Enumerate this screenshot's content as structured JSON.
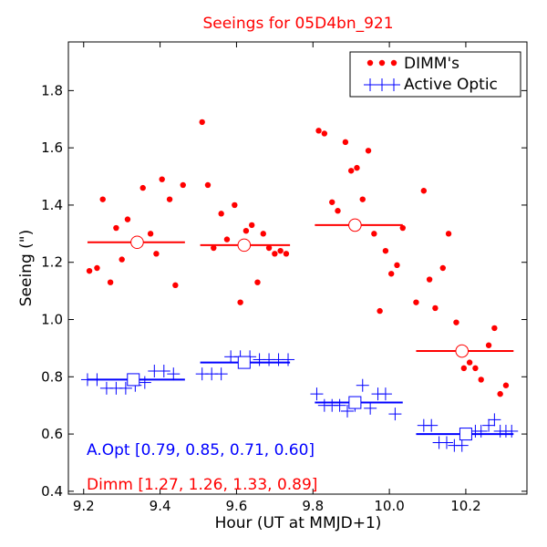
{
  "chart_data": {
    "type": "scatter",
    "title": "Seeings for 05D4bn_921",
    "xlabel": "Hour (UT at MMJD+1)",
    "ylabel": "Seeing (\")",
    "xlim": [
      9.16,
      10.36
    ],
    "ylim": [
      0.39,
      1.97
    ],
    "x_ticks": [
      9.2,
      9.4,
      9.6,
      9.8,
      10.0,
      10.2
    ],
    "x_tick_labels": [
      "9.2",
      "9.4",
      "9.6",
      "9.8",
      "10.0",
      "10.2"
    ],
    "y_ticks": [
      0.4,
      0.6,
      0.8,
      1.0,
      1.2,
      1.4,
      1.6,
      1.8
    ],
    "y_tick_labels": [
      "0.4",
      "0.6",
      "0.8",
      "1.0",
      "1.2",
      "1.4",
      "1.6",
      "1.8"
    ],
    "grid": false,
    "legend_position": "top-right",
    "colors": {
      "dimm": "#ff0000",
      "active_optic": "#0000ff",
      "title": "#ff0000"
    },
    "series": [
      {
        "name": "DIMM's",
        "marker": "dot",
        "color": "#ff0000",
        "points": [
          [
            9.215,
            1.17
          ],
          [
            9.235,
            1.18
          ],
          [
            9.25,
            1.42
          ],
          [
            9.27,
            1.13
          ],
          [
            9.285,
            1.32
          ],
          [
            9.3,
            1.21
          ],
          [
            9.315,
            1.35
          ],
          [
            9.355,
            1.46
          ],
          [
            9.375,
            1.3
          ],
          [
            9.39,
            1.23
          ],
          [
            9.405,
            1.49
          ],
          [
            9.425,
            1.42
          ],
          [
            9.44,
            1.12
          ],
          [
            9.46,
            1.47
          ],
          [
            9.51,
            1.69
          ],
          [
            9.525,
            1.47
          ],
          [
            9.54,
            1.25
          ],
          [
            9.56,
            1.37
          ],
          [
            9.575,
            1.28
          ],
          [
            9.595,
            1.4
          ],
          [
            9.61,
            1.06
          ],
          [
            9.625,
            1.31
          ],
          [
            9.64,
            1.33
          ],
          [
            9.655,
            1.13
          ],
          [
            9.67,
            1.3
          ],
          [
            9.685,
            1.25
          ],
          [
            9.7,
            1.23
          ],
          [
            9.715,
            1.24
          ],
          [
            9.73,
            1.23
          ],
          [
            9.815,
            1.66
          ],
          [
            9.83,
            1.65
          ],
          [
            9.85,
            1.41
          ],
          [
            9.865,
            1.38
          ],
          [
            9.885,
            1.62
          ],
          [
            9.9,
            1.52
          ],
          [
            9.915,
            1.53
          ],
          [
            9.93,
            1.42
          ],
          [
            9.945,
            1.59
          ],
          [
            9.96,
            1.3
          ],
          [
            9.975,
            1.03
          ],
          [
            9.99,
            1.24
          ],
          [
            10.005,
            1.16
          ],
          [
            10.02,
            1.19
          ],
          [
            10.035,
            1.32
          ],
          [
            10.07,
            1.06
          ],
          [
            10.09,
            1.45
          ],
          [
            10.105,
            1.14
          ],
          [
            10.12,
            1.04
          ],
          [
            10.14,
            1.18
          ],
          [
            10.155,
            1.3
          ],
          [
            10.175,
            0.99
          ],
          [
            10.195,
            0.83
          ],
          [
            10.21,
            0.85
          ],
          [
            10.225,
            0.83
          ],
          [
            10.24,
            0.79
          ],
          [
            10.26,
            0.91
          ],
          [
            10.275,
            0.97
          ],
          [
            10.29,
            0.74
          ],
          [
            10.305,
            0.77
          ]
        ]
      },
      {
        "name": "Active Optic",
        "marker": "plus",
        "color": "#0000ff",
        "points": [
          [
            9.21,
            0.79
          ],
          [
            9.235,
            0.79
          ],
          [
            9.26,
            0.76
          ],
          [
            9.285,
            0.76
          ],
          [
            9.31,
            0.76
          ],
          [
            9.335,
            0.77
          ],
          [
            9.36,
            0.78
          ],
          [
            9.385,
            0.82
          ],
          [
            9.41,
            0.82
          ],
          [
            9.435,
            0.81
          ],
          [
            9.51,
            0.81
          ],
          [
            9.535,
            0.81
          ],
          [
            9.56,
            0.81
          ],
          [
            9.585,
            0.87
          ],
          [
            9.61,
            0.87
          ],
          [
            9.635,
            0.87
          ],
          [
            9.66,
            0.86
          ],
          [
            9.685,
            0.86
          ],
          [
            9.71,
            0.86
          ],
          [
            9.735,
            0.86
          ],
          [
            9.81,
            0.74
          ],
          [
            9.83,
            0.7
          ],
          [
            9.85,
            0.7
          ],
          [
            9.87,
            0.7
          ],
          [
            9.89,
            0.68
          ],
          [
            9.91,
            0.7
          ],
          [
            9.93,
            0.77
          ],
          [
            9.95,
            0.69
          ],
          [
            9.97,
            0.74
          ],
          [
            9.99,
            0.74
          ],
          [
            10.015,
            0.67
          ],
          [
            10.09,
            0.63
          ],
          [
            10.11,
            0.63
          ],
          [
            10.13,
            0.57
          ],
          [
            10.15,
            0.57
          ],
          [
            10.17,
            0.56
          ],
          [
            10.19,
            0.56
          ],
          [
            10.21,
            0.6
          ],
          [
            10.225,
            0.61
          ],
          [
            10.24,
            0.61
          ],
          [
            10.26,
            0.63
          ],
          [
            10.275,
            0.65
          ],
          [
            10.29,
            0.61
          ],
          [
            10.305,
            0.61
          ],
          [
            10.32,
            0.61
          ]
        ]
      }
    ],
    "dimm_summary": [
      {
        "x_range": [
          9.21,
          9.465
        ],
        "x": 9.34,
        "value": 1.27
      },
      {
        "x_range": [
          9.505,
          9.74
        ],
        "x": 9.62,
        "value": 1.26
      },
      {
        "x_range": [
          9.805,
          10.035
        ],
        "x": 9.91,
        "value": 1.33
      },
      {
        "x_range": [
          10.07,
          10.325
        ],
        "x": 10.19,
        "value": 0.89
      }
    ],
    "aopt_summary": [
      {
        "x_range": [
          9.21,
          9.465
        ],
        "x": 9.33,
        "value": 0.79
      },
      {
        "x_range": [
          9.505,
          9.74
        ],
        "x": 9.62,
        "value": 0.85
      },
      {
        "x_range": [
          9.805,
          10.035
        ],
        "x": 9.91,
        "value": 0.71
      },
      {
        "x_range": [
          10.07,
          10.325
        ],
        "x": 10.2,
        "value": 0.6
      }
    ],
    "annotations": {
      "aopt_text": "A.Opt [0.79, 0.85, 0.71, 0.60]",
      "dimm_text": "Dimm [1.27, 1.26, 1.33, 0.89]"
    }
  }
}
